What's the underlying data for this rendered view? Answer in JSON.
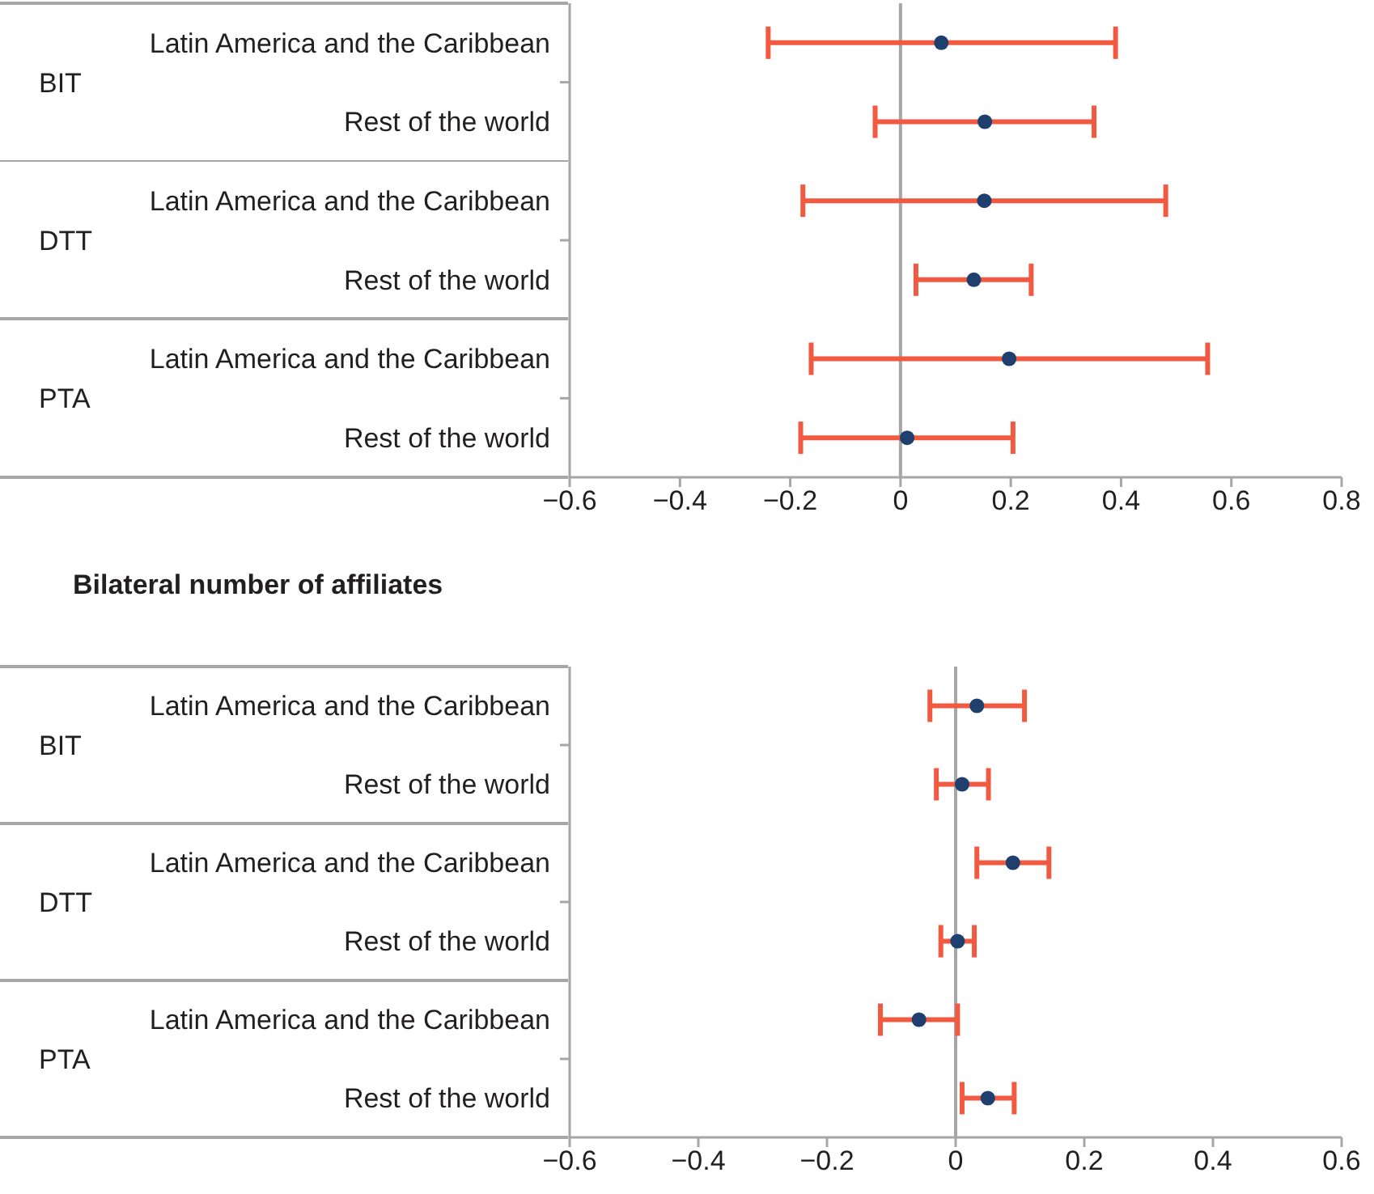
{
  "chart_data": [
    {
      "type": "scatter",
      "orientation": "horizontal",
      "marker": "circle",
      "categories": [
        "Latin America and the Caribbean",
        "Rest of the world",
        "Latin America and the Caribbean",
        "Rest of the world",
        "Latin America and the Caribbean",
        "Rest of the world"
      ],
      "annotations": [
        "BIT",
        "DTT",
        "PTA"
      ],
      "series": [
        {
          "color": "#1f3f6e",
          "values": [
            0.074,
            0.153,
            0.152,
            0.133,
            0.197,
            0.012
          ],
          "errors": [
            [
              -0.24,
              0.39
            ],
            [
              -0.046,
              0.351
            ],
            [
              -0.177,
              0.481
            ],
            [
              0.028,
              0.237
            ],
            [
              -0.162,
              0.557
            ],
            [
              -0.181,
              0.204
            ]
          ]
        }
      ],
      "xlim": [
        -0.6,
        0.8
      ],
      "xticks": [
        -0.6,
        -0.4,
        -0.2,
        0,
        0.2,
        0.4,
        0.6,
        0.8
      ],
      "ref_lines": [
        {
          "axis": "x",
          "value": 0,
          "color": "#a6a6a6"
        }
      ]
    },
    {
      "type": "scatter",
      "orientation": "horizontal",
      "marker": "circle",
      "title": "Bilateral number of affiliates",
      "categories": [
        "Latin America and the Caribbean",
        "Rest of the world",
        "Latin America and the Caribbean",
        "Rest of the world",
        "Latin America and the Caribbean",
        "Rest of the world"
      ],
      "annotations": [
        "BIT",
        "DTT",
        "PTA"
      ],
      "series": [
        {
          "color": "#1f3f6e",
          "values": [
            0.033,
            0.01,
            0.089,
            0.003,
            -0.057,
            0.05
          ],
          "errors": [
            [
              -0.04,
              0.107
            ],
            [
              -0.03,
              0.051
            ],
            [
              0.033,
              0.145
            ],
            [
              -0.023,
              0.029
            ],
            [
              -0.117,
              0.003
            ],
            [
              0.01,
              0.091
            ]
          ]
        }
      ],
      "xlim": [
        -0.6,
        0.6
      ],
      "xticks": [
        -0.6,
        -0.4,
        -0.2,
        0,
        0.2,
        0.4,
        0.6
      ],
      "ref_lines": [
        {
          "axis": "x",
          "value": 0,
          "color": "#a6a6a6"
        }
      ]
    }
  ]
}
